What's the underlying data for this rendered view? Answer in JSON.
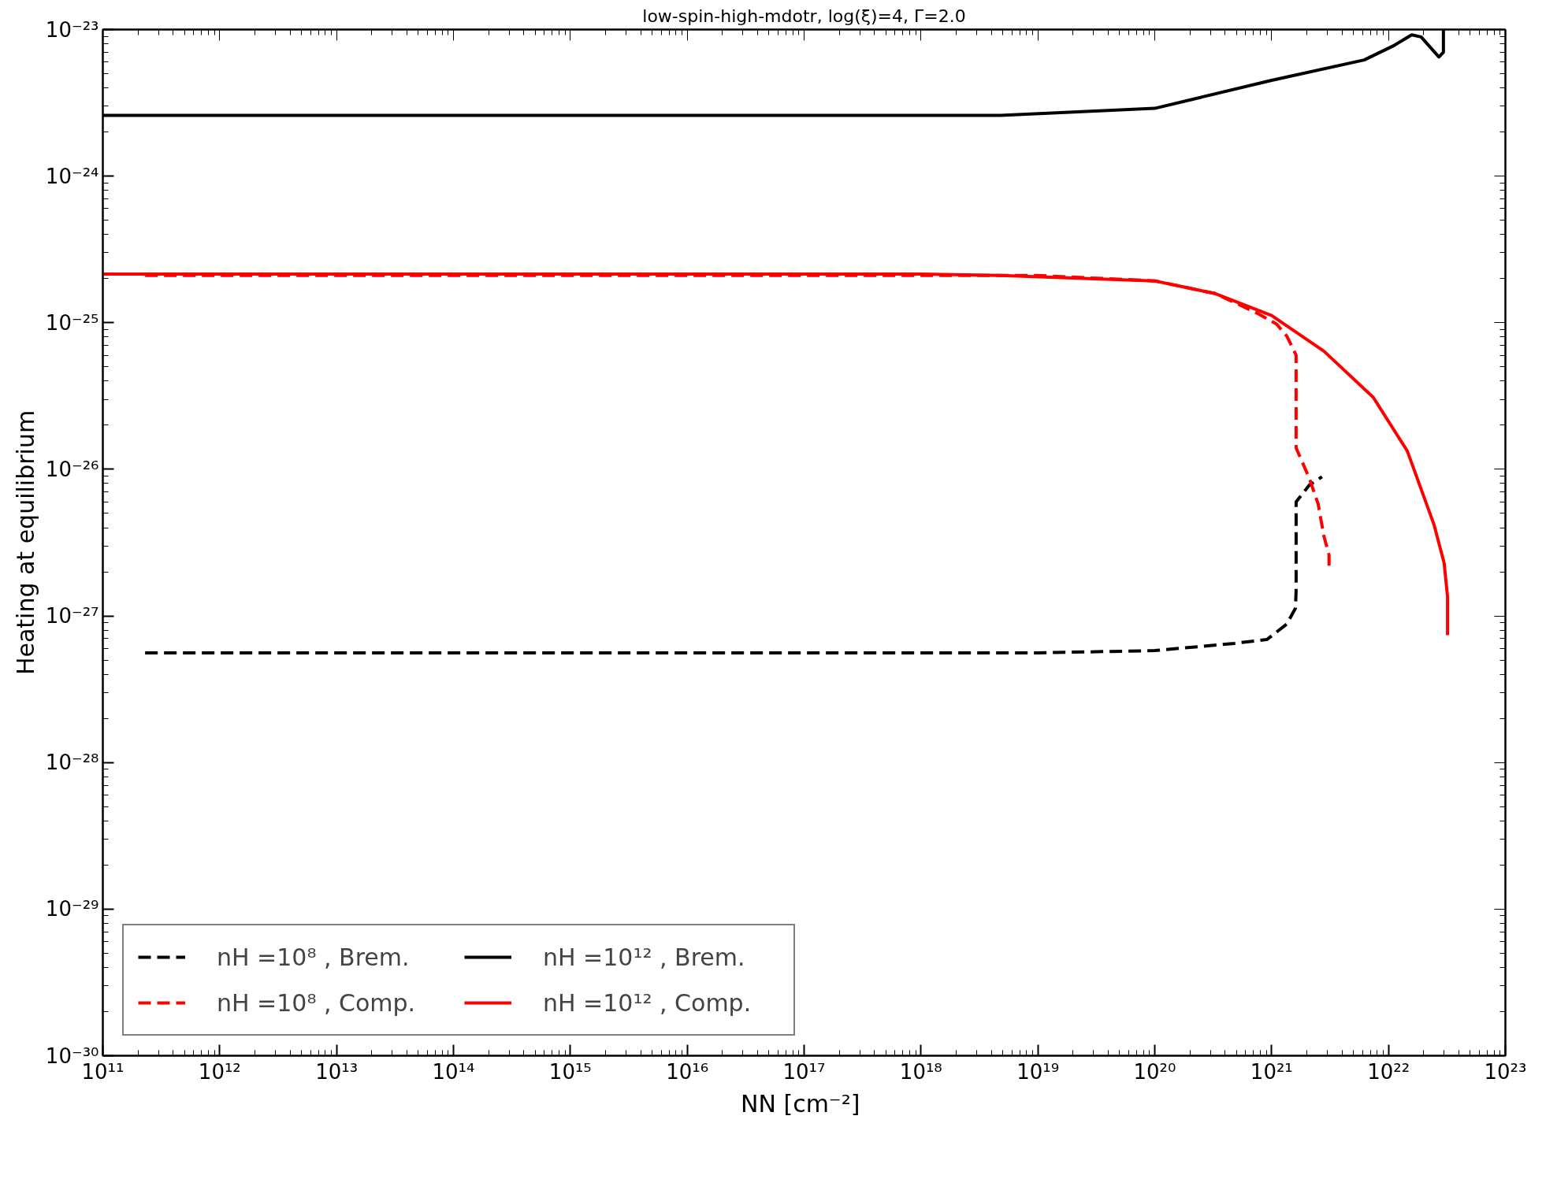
{
  "chart_data": {
    "type": "line",
    "title": "low-spin-high-mdotr, log(ξ)=4, Γ=2.0",
    "xlabel": "NN  [cm⁻²]",
    "ylabel": "Heating at equilibrium",
    "log": "xy",
    "grid": false,
    "legend": "bottom left",
    "xlim": [
      100000000000.0,
      1e+23
    ],
    "ylim": [
      1e-30,
      1e-23
    ],
    "xticks": [
      {
        "value": 100000000000.0,
        "label": "10¹¹"
      },
      {
        "value": 1000000000000.0,
        "label": "10¹²"
      },
      {
        "value": 10000000000000.0,
        "label": "10¹³"
      },
      {
        "value": 100000000000000.0,
        "label": "10¹⁴"
      },
      {
        "value": 1000000000000000.0,
        "label": "10¹⁵"
      },
      {
        "value": 1e+16,
        "label": "10¹⁶"
      },
      {
        "value": 1e+17,
        "label": "10¹⁷"
      },
      {
        "value": 1e+18,
        "label": "10¹⁸"
      },
      {
        "value": 1e+19,
        "label": "10¹⁹"
      },
      {
        "value": 1e+20,
        "label": "10²⁰"
      },
      {
        "value": 1e+21,
        "label": "10²¹"
      },
      {
        "value": 1e+22,
        "label": "10²²"
      },
      {
        "value": 1e+23,
        "label": "10²³"
      }
    ],
    "yticks": [
      {
        "value": 1e-30,
        "label": "10⁻³⁰"
      },
      {
        "value": 1e-29,
        "label": "10⁻²⁹"
      },
      {
        "value": 1e-28,
        "label": "10⁻²⁸"
      },
      {
        "value": 1e-27,
        "label": "10⁻²⁷"
      },
      {
        "value": 1e-26,
        "label": "10⁻²⁶"
      },
      {
        "value": 1e-25,
        "label": "10⁻²⁵"
      },
      {
        "value": 1e-24,
        "label": "10⁻²⁴"
      },
      {
        "value": 1e-23,
        "label": "10⁻²³"
      }
    ],
    "series": [
      {
        "name": "nH =10⁸ , Brem.",
        "color": "#000000",
        "line_style": "dashed",
        "x": [
          230000000000.0,
          10000000000000.0,
          1000000000000000.0,
          1e+17,
          1e+19,
          1e+20,
          4.8e+20,
          9.1e+20,
          1.35e+21,
          1.6e+21,
          1.62e+21,
          1.62e+21,
          2.1e+21,
          2.7e+21
        ],
        "values": [
          5.6e-28,
          5.6e-28,
          5.6e-28,
          5.6e-28,
          5.6e-28,
          5.8e-28,
          6.5e-28,
          6.9e-28,
          8.8e-28,
          1.13e-27,
          1.5e-27,
          6e-27,
          7.8e-27,
          8.9e-27
        ]
      },
      {
        "name": "nH =10⁸ , Comp.",
        "color": "#ff0000",
        "line_style": "dashed",
        "x": [
          230000000000.0,
          10000000000000.0,
          1000000000000000.0,
          1e+17,
          1e+19,
          1e+20,
          3.3e+20,
          7.4e+20,
          1.1e+21,
          1.35e+21,
          1.62e+21,
          1.62e+21,
          1.62e+21,
          2.1e+21,
          2.5e+21,
          2.8e+21,
          3.1e+21,
          3.1e+21
        ],
        "values": [
          2.1e-25,
          2.1e-25,
          2.1e-25,
          2.1e-25,
          2.1e-25,
          1.93e-25,
          1.58e-25,
          1.17e-25,
          9.8e-26,
          8.1e-26,
          6e-26,
          3e-26,
          1.4e-26,
          8.7e-27,
          5.8e-27,
          3.5e-27,
          2.6e-27,
          2.2e-27
        ]
      },
      {
        "name": "nH =10¹² , Brem.",
        "color": "#000000",
        "line_style": "solid",
        "x": [
          100000000000.0,
          10000000000000.0,
          1000000000000000.0,
          1e+17,
          1e+18,
          4.8e+18,
          1e+20,
          1e+21,
          6.2e+21,
          1.12e+22,
          1.58e+22,
          1.9e+22,
          2.7e+22,
          2.95e+22,
          2.95e+22
        ],
        "values": [
          2.6e-24,
          2.6e-24,
          2.6e-24,
          2.6e-24,
          2.6e-24,
          2.6e-24,
          2.9e-24,
          4.5e-24,
          6.2e-24,
          7.8e-24,
          9.2e-24,
          8.9e-24,
          6.5e-24,
          7e-24,
          1e-23
        ]
      },
      {
        "name": "nH =10¹² , Comp.",
        "color": "#ff0000",
        "line_style": "solid",
        "x": [
          100000000000.0,
          10000000000000.0,
          1000000000000000.0,
          1e+17,
          1e+18,
          4.8e+18,
          1e+20,
          3.3e+20,
          1e+21,
          2.8e+21,
          7.4e+21,
          1.45e+22,
          2.45e+22,
          2.99e+22,
          3.2e+22,
          3.2e+22
        ],
        "values": [
          2.15e-25,
          2.15e-25,
          2.15e-25,
          2.15e-25,
          2.15e-25,
          2.1e-25,
          1.93e-25,
          1.58e-25,
          1.12e-25,
          6.4e-26,
          3.1e-26,
          1.33e-26,
          4.2e-27,
          2.3e-27,
          1.35e-27,
          7.4e-28
        ]
      }
    ]
  }
}
